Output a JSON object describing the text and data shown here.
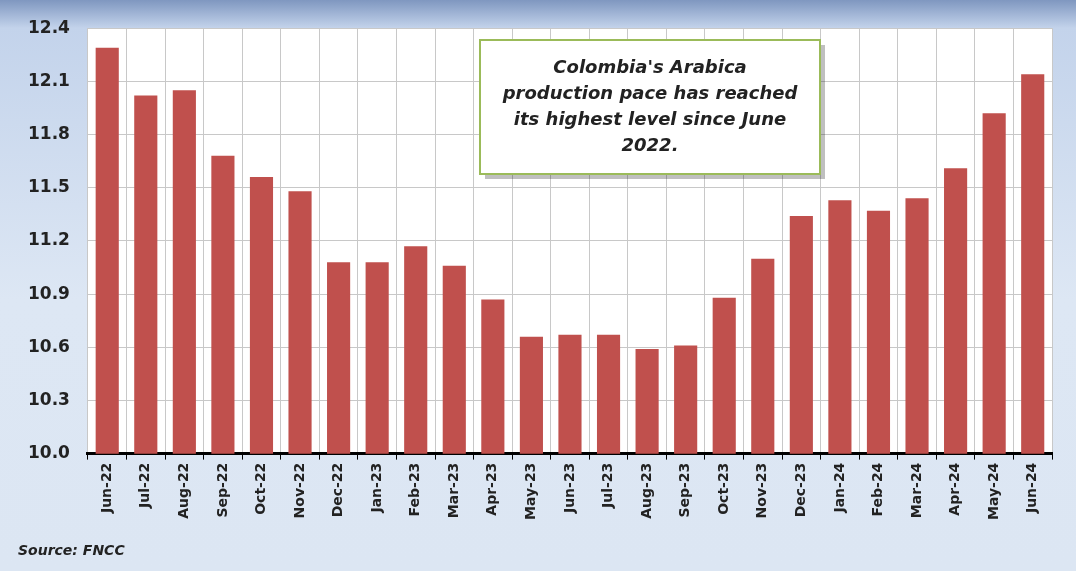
{
  "chart_data": {
    "type": "bar",
    "categories": [
      "Jun-22",
      "Jul-22",
      "Aug-22",
      "Sep-22",
      "Oct-22",
      "Nov-22",
      "Dec-22",
      "Jan-23",
      "Feb-23",
      "Mar-23",
      "Apr-23",
      "May-23",
      "Jun-23",
      "Jul-23",
      "Aug-23",
      "Sep-23",
      "Oct-23",
      "Nov-23",
      "Dec-23",
      "Jan-24",
      "Feb-24",
      "Mar-24",
      "Apr-24",
      "May-24",
      "Jun-24"
    ],
    "values": [
      12.29,
      12.02,
      12.05,
      11.68,
      11.56,
      11.48,
      11.08,
      11.08,
      11.17,
      11.06,
      10.87,
      10.66,
      10.67,
      10.67,
      10.59,
      10.61,
      10.88,
      11.1,
      11.34,
      11.43,
      11.37,
      11.44,
      11.61,
      11.92,
      12.14
    ],
    "color": "#c0504d",
    "ylim": [
      10.0,
      12.4
    ],
    "yticks": [
      {
        "value": 10.0,
        "label": "10.0"
      },
      {
        "value": 10.3,
        "label": "10.3"
      },
      {
        "value": 10.6,
        "label": "10.6"
      },
      {
        "value": 10.9,
        "label": "10.9"
      },
      {
        "value": 11.2,
        "label": "11.2"
      },
      {
        "value": 11.5,
        "label": "11.5"
      },
      {
        "value": 11.8,
        "label": "11.8"
      },
      {
        "value": 12.1,
        "label": "12.1"
      },
      {
        "value": 12.4,
        "label": "12.4"
      }
    ],
    "grid": true,
    "annotations": [
      "Colombia's Arabica production pace has reached its highest level since June 2022.",
      "Source: FNCC"
    ]
  }
}
